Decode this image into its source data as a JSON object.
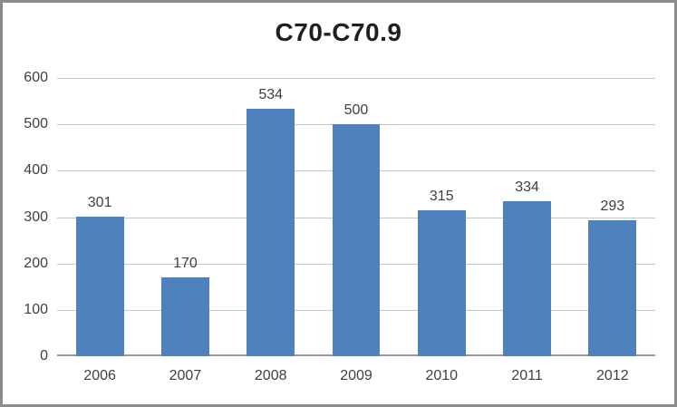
{
  "chart_data": {
    "type": "bar",
    "title": "C70-C70.9",
    "categories": [
      "2006",
      "2007",
      "2008",
      "2009",
      "2010",
      "2011",
      "2012"
    ],
    "values": [
      301,
      170,
      534,
      500,
      315,
      334,
      293
    ],
    "xlabel": "",
    "ylabel": "",
    "ylim": [
      0,
      600
    ],
    "ytick_step": 100,
    "yticks": [
      0,
      100,
      200,
      300,
      400,
      500,
      600
    ],
    "grid": true,
    "legend_position": "none",
    "data_labels": true
  },
  "colors": {
    "bar": "#4F81BD",
    "gridline": "#C6C6C6",
    "axis_line": "#9A9A9A",
    "label_text": "#3F3F3F",
    "title_text": "#1F1F1F",
    "frame_border": "#8C8C8C",
    "background": "#FFFFFF"
  }
}
